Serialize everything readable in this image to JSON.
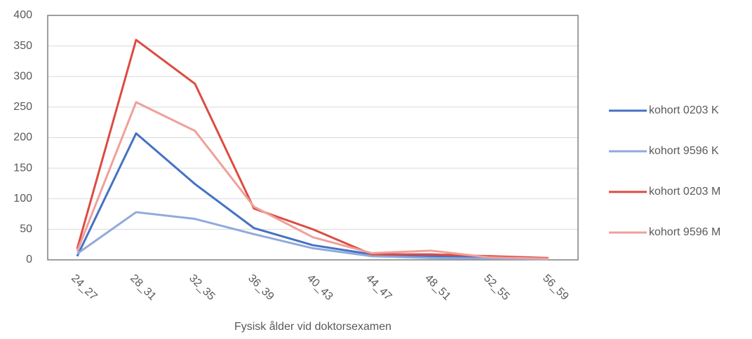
{
  "chart_data": {
    "type": "line",
    "x_label": "Fysisk ålder vid doktorsexamen",
    "categories": [
      "24_27",
      "28_31",
      "32_35",
      "36_39",
      "40_43",
      "44_47",
      "48_51",
      "52_55",
      "56_59"
    ],
    "series": [
      {
        "name": "kohort 0203 K",
        "color": "#4472c4",
        "values": [
          6,
          207,
          124,
          52,
          24,
          9,
          6,
          4,
          2
        ]
      },
      {
        "name": "kohort 9596 K",
        "color": "#8faadc",
        "values": [
          10,
          78,
          67,
          42,
          19,
          6,
          3,
          2,
          1
        ]
      },
      {
        "name": "kohort 0203 M",
        "color": "#dc4b42",
        "values": [
          18,
          360,
          288,
          84,
          50,
          9,
          9,
          6,
          3
        ]
      },
      {
        "name": "kohort 9596 M",
        "color": "#f0a09a",
        "values": [
          14,
          258,
          211,
          87,
          37,
          11,
          15,
          4,
          2
        ]
      }
    ],
    "ylim": [
      0,
      400
    ],
    "yticks": [
      0,
      50,
      100,
      150,
      200,
      250,
      300,
      350,
      400
    ],
    "grid": true,
    "legend": "right"
  }
}
